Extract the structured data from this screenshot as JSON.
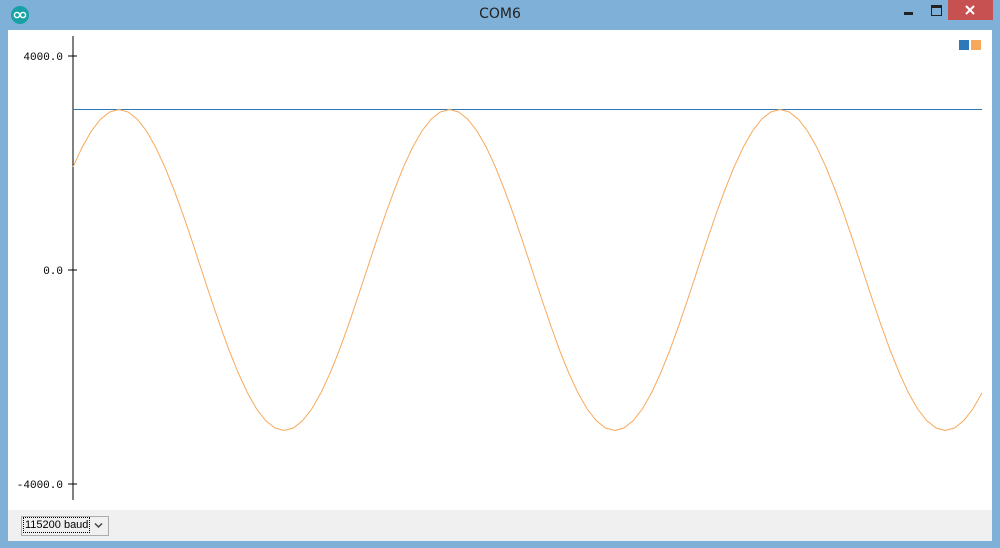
{
  "window": {
    "title": "COM6",
    "icon": "arduino-icon",
    "controls": [
      "minimize",
      "maximize",
      "close"
    ]
  },
  "toolbar": {
    "baud_rate": "115200 baud"
  },
  "chart_data": {
    "type": "line",
    "ylim": [
      -4000,
      4000
    ],
    "yticks": [
      "4000.0",
      "0.0",
      "-4000.0"
    ],
    "ytick_values": [
      4000,
      0,
      -4000
    ],
    "x": "sample index",
    "grid": false,
    "legend": "top-right",
    "series": [
      {
        "color": "#2e78b7",
        "values": [
          3000,
          3000,
          3000,
          3000,
          3000,
          3000,
          3000,
          3000,
          3000,
          3000,
          3000,
          3000,
          3000,
          3000,
          3000,
          3000,
          3000,
          3000,
          3000,
          3000,
          3000,
          3000,
          3000,
          3000,
          3000,
          3000,
          3000,
          3000,
          3000,
          3000,
          3000,
          3000,
          3000,
          3000,
          3000,
          3000,
          3000,
          3000,
          3000,
          3000,
          3000,
          3000,
          3000,
          3000,
          3000,
          3000,
          3000,
          3000,
          3000,
          3000,
          3000,
          3000,
          3000,
          3000,
          3000,
          3000,
          3000,
          3000,
          3000,
          3000,
          3000,
          3000,
          3000,
          3000,
          3000,
          3000,
          3000,
          3000,
          3000,
          3000,
          3000,
          3000,
          3000,
          3000,
          3000,
          3000,
          3000,
          3000,
          3000,
          3000,
          3000,
          3000,
          3000,
          3000,
          3000,
          3000,
          3000,
          3000,
          3000,
          3000,
          3000,
          3000,
          3000,
          3000,
          3000,
          3000,
          3000,
          3000,
          3000,
          3000
        ]
      },
      {
        "color": "#f8a85a",
        "values": [
          1928,
          2298,
          2598,
          2819,
          2954,
          3000,
          2954,
          2819,
          2598,
          2298,
          1928,
          1500,
          1026,
          521,
          0,
          -521,
          -1026,
          -1500,
          -1928,
          -2298,
          -2598,
          -2819,
          -2954,
          -3000,
          -2954,
          -2819,
          -2598,
          -2298,
          -1928,
          -1500,
          -1026,
          -521,
          0,
          521,
          1026,
          1500,
          1928,
          2298,
          2598,
          2819,
          2954,
          3000,
          2954,
          2819,
          2598,
          2298,
          1928,
          1500,
          1026,
          521,
          0,
          -521,
          -1026,
          -1500,
          -1928,
          -2298,
          -2598,
          -2819,
          -2954,
          -3000,
          -2954,
          -2819,
          -2598,
          -2298,
          -1928,
          -1500,
          -1026,
          -521,
          0,
          521,
          1026,
          1500,
          1928,
          2298,
          2598,
          2819,
          2954,
          3000,
          2954,
          2819,
          2598,
          2298,
          1928,
          1500,
          1026,
          521,
          0,
          -521,
          -1026,
          -1500,
          -1928,
          -2298,
          -2598,
          -2819,
          -2954,
          -3000,
          -2954,
          -2819,
          -2598,
          -2298
        ]
      }
    ]
  }
}
